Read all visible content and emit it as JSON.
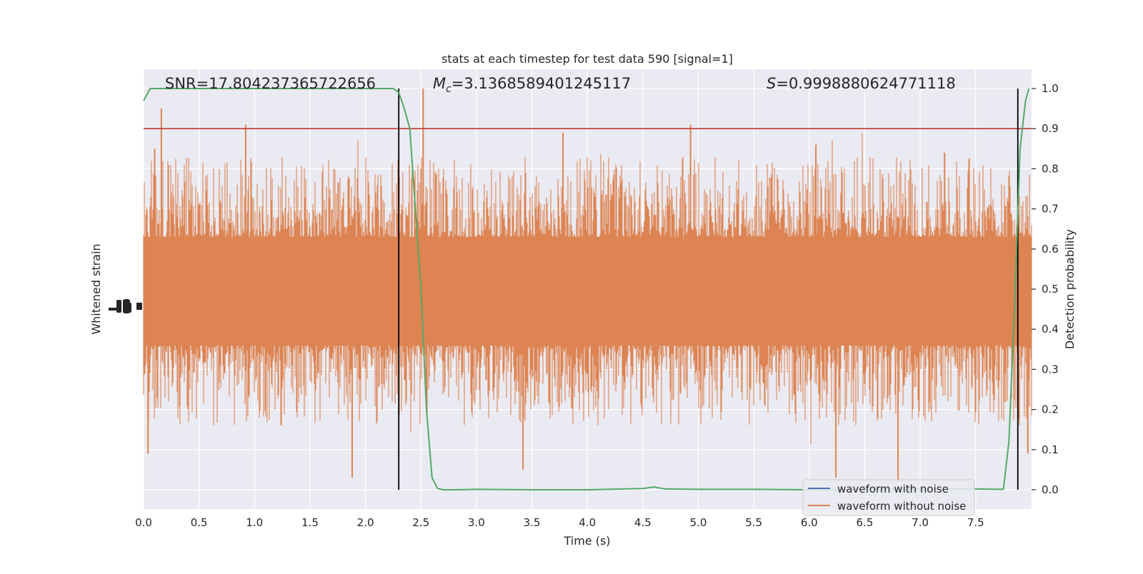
{
  "chart_data": {
    "type": "line",
    "title": "stats at each timestep for test data 590 [signal=1]",
    "xlabel": "Time (s)",
    "ylabel_left": "Whitened strain",
    "ylabel_right": "Detection probability",
    "xlim": [
      0.0,
      8.0
    ],
    "ylim_right": [
      -0.048,
      1.048
    ],
    "xticks": [
      "0.0",
      "0.5",
      "1.0",
      "1.5",
      "2.0",
      "2.5",
      "3.0",
      "3.5",
      "4.0",
      "4.5",
      "5.0",
      "5.5",
      "6.0",
      "6.5",
      "7.0",
      "7.5"
    ],
    "yticks_right": [
      "0.0",
      "0.1",
      "0.2",
      "0.3",
      "0.4",
      "0.5",
      "0.6",
      "0.7",
      "0.8",
      "0.9",
      "1.0"
    ],
    "grid": true,
    "background": "#eaeaf2",
    "annotations": {
      "snr": "SNR=17.804237365722656",
      "mc_prefix": "M",
      "mc_sub": "c",
      "mc_value": "=3.1368589401245117",
      "s_prefix": "S",
      "s_value": "=0.9998880624771118"
    },
    "threshold": {
      "y": 0.9,
      "color": "#c0392b"
    },
    "vlines": [
      2.3,
      7.88
    ],
    "series": [
      {
        "name": "waveform with noise",
        "color": "#4c72b0"
      },
      {
        "name": "waveform without noise",
        "color": "#dd8452"
      },
      {
        "color": "#55a868",
        "x": [
          0.0,
          0.06,
          0.2,
          0.5,
          1.0,
          1.5,
          2.0,
          2.25,
          2.3,
          2.35,
          2.4,
          2.45,
          2.5,
          2.55,
          2.6,
          2.65,
          2.7,
          2.8,
          3.0,
          3.5,
          4.0,
          4.5,
          4.6,
          4.7,
          5.0,
          5.5,
          6.0,
          6.5,
          7.0,
          7.5,
          7.75,
          7.8,
          7.85,
          7.9,
          7.95,
          7.98
        ],
        "y": [
          0.97,
          1.0,
          1.0,
          1.0,
          1.0,
          1.0,
          1.0,
          1.0,
          0.99,
          0.95,
          0.9,
          0.7,
          0.5,
          0.2,
          0.03,
          0.003,
          0.0,
          0.0,
          0.001,
          0.0,
          0.0,
          0.003,
          0.007,
          0.002,
          0.001,
          0.001,
          0.0,
          0.001,
          0.001,
          0.002,
          0.001,
          0.12,
          0.45,
          0.85,
          0.97,
          1.0
        ]
      }
    ],
    "strain_noise": {
      "color": "#dd8452",
      "core_range": [
        0.36,
        0.63
      ],
      "spikes_up": [
        [
          0.1,
          0.85
        ],
        [
          0.16,
          0.95
        ],
        [
          0.92,
          0.91
        ],
        [
          2.52,
          1.0
        ],
        [
          3.78,
          0.89
        ],
        [
          4.93,
          0.91
        ],
        [
          6.06,
          0.86
        ],
        [
          7.22,
          0.84
        ]
      ],
      "spikes_down": [
        [
          0.04,
          0.09
        ],
        [
          1.88,
          0.03
        ],
        [
          3.42,
          0.05
        ],
        [
          6.24,
          0.03
        ],
        [
          6.8,
          0.02
        ],
        [
          7.97,
          0.09
        ]
      ]
    }
  }
}
